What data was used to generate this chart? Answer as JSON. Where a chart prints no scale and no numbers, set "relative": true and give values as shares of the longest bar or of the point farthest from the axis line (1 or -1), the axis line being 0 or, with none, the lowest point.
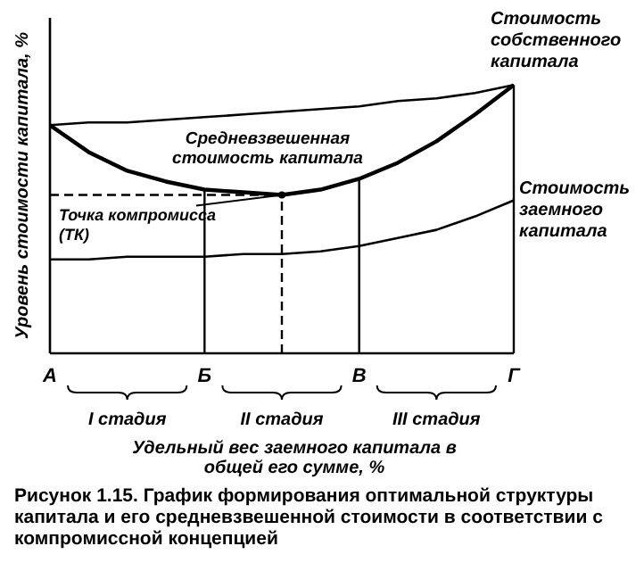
{
  "chart_data": {
    "type": "line",
    "relative": true,
    "title": "Рисунок 1.15. График формирования оптимальной структуры капитала и его средневзвешенной стоимости в соответствии с компромиссной концепцией",
    "xlabel": "Удельный вес заемного капитала в общей его сумме, %",
    "ylabel": "Уровень стоимости капитала, %",
    "categories": [
      "А",
      null,
      null,
      null,
      "Б",
      null,
      null,
      null,
      "В",
      null,
      null,
      null,
      "Г"
    ],
    "series": [
      {
        "name": "Стоимость собственного капитала",
        "color": "#000000",
        "values": [
          0.85,
          0.86,
          0.86,
          0.87,
          0.88,
          0.89,
          0.9,
          0.91,
          0.92,
          0.94,
          0.95,
          0.97,
          1
        ]
      },
      {
        "name": "Средневзвешенная стоимость капитала",
        "color": "#000000",
        "values": [
          0.85,
          0.75,
          0.68,
          0.64,
          0.61,
          0.6,
          0.59,
          0.61,
          0.65,
          0.71,
          0.79,
          0.89,
          1
        ]
      },
      {
        "name": "Стоимость заемного капитала",
        "color": "#000000",
        "values": [
          0.35,
          0.35,
          0.36,
          0.36,
          0.36,
          0.37,
          0.37,
          0.38,
          0.4,
          0.43,
          0.46,
          0.51,
          0.57
        ]
      }
    ],
    "ref_lines": [
      {
        "axis": "x",
        "value": "Б"
      },
      {
        "axis": "x",
        "value": "В"
      },
      {
        "axis": "x",
        "value": "Г"
      },
      {
        "axis": "y",
        "value": 0.59,
        "line_style": "dashed"
      }
    ],
    "annotations": [
      {
        "text": "Точка компромисса (ТК)",
        "y": 0.59
      },
      "I стадия",
      "II стадия",
      "III стадия"
    ]
  }
}
